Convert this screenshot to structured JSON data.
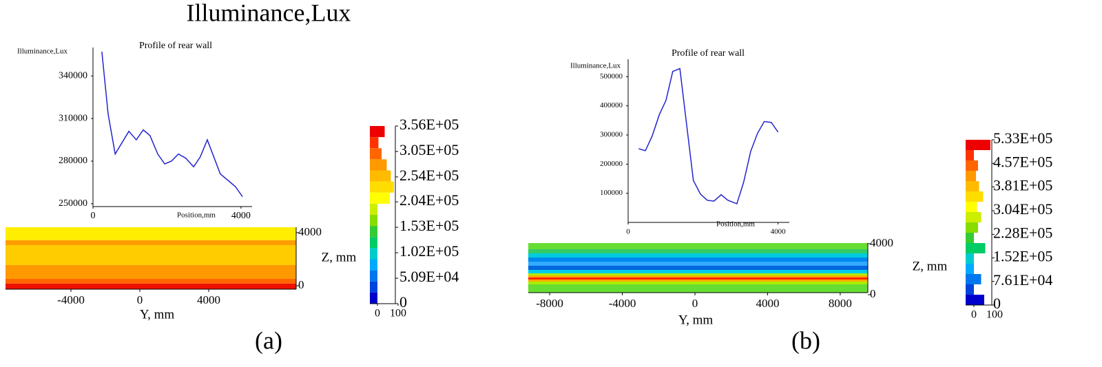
{
  "figure_title": "Illuminance,Lux",
  "panel_labels": [
    "(a)",
    "(b)"
  ],
  "chart_data": [
    {
      "type": "line",
      "title": "Profile of rear wall",
      "ylabel": "Illuminance,Lux",
      "xlabel": "Position,mm",
      "color": "#2222cc",
      "x": [
        240,
        410,
        600,
        970,
        1170,
        1360,
        1540,
        1750,
        1940,
        2120,
        2310,
        2510,
        2720,
        2900,
        3090,
        3440,
        3670,
        3850,
        4040
      ],
      "values": [
        357000,
        313000,
        285000,
        301000,
        295000,
        302000,
        298000,
        285000,
        278000,
        280000,
        285000,
        282000,
        276000,
        283000,
        295000,
        271000,
        266000,
        262000,
        255000
      ],
      "xlim": [
        0,
        4300
      ],
      "xticks": [
        0,
        4000
      ],
      "ylim": [
        248000,
        360000
      ],
      "yticks": [
        250000,
        280000,
        310000,
        340000
      ]
    },
    {
      "type": "heatmap",
      "xlabel": "Y, mm",
      "ylabel": "Z, mm",
      "xlim": [
        -7800,
        9080
      ],
      "xticks": [
        -4000,
        0,
        4000
      ],
      "ylim": [
        -260,
        4410
      ],
      "yticks": [
        0,
        4000
      ],
      "bands": [
        {
          "z": [
            3430,
            4410
          ],
          "color": "#ffee00"
        },
        {
          "z": [
            3060,
            3430
          ],
          "color": "#ff9d00"
        },
        {
          "z": [
            1560,
            3060
          ],
          "color": "#ffcc00"
        },
        {
          "z": [
            520,
            1560
          ],
          "color": "#ff9900"
        },
        {
          "z": [
            160,
            520
          ],
          "color": "#ff6600"
        },
        {
          "z": [
            -260,
            160
          ],
          "color": "#ee1100"
        }
      ]
    },
    {
      "type": "colorbar",
      "ylim": [
        0,
        356000
      ],
      "yticks": [
        {
          "value": 356000,
          "label": "3.56E+05"
        },
        {
          "value": 305000,
          "label": "3.05E+05"
        },
        {
          "value": 254000,
          "label": "2.54E+05"
        },
        {
          "value": 204000,
          "label": "2.04E+05"
        },
        {
          "value": 153000,
          "label": "1.53E+05"
        },
        {
          "value": 102000,
          "label": "1.02E+05"
        },
        {
          "value": 50900,
          "label": "5.09E+04"
        },
        0
      ],
      "levels": [
        "#ee0000",
        "#ff3300",
        "#ff6600",
        "#ff9900",
        "#ffbb00",
        "#ffdd00",
        "#ffff00",
        "#ccee00",
        "#88dd00",
        "#33cc33",
        "#00cc66",
        "#00cccc",
        "#00aaff",
        "#0077ee",
        "#0044dd",
        "#0000cc"
      ],
      "counts": [
        35,
        5,
        20,
        45,
        65,
        80,
        60,
        0,
        0,
        0,
        0,
        0,
        0,
        0,
        0,
        0
      ],
      "xlim": [
        0,
        100
      ],
      "xticks": [
        0,
        100
      ]
    },
    {
      "type": "line",
      "title": "Profile of rear wall",
      "ylabel": "Illuminance,Lux",
      "xlabel": "Position,mm",
      "color": "#2222cc",
      "x": [
        280,
        460,
        640,
        830,
        1010,
        1190,
        1380,
        1740,
        1930,
        2110,
        2290,
        2480,
        2660,
        2900,
        3080,
        3270,
        3450,
        3630,
        3820,
        4000
      ],
      "values": [
        253000,
        246000,
        296000,
        369000,
        419000,
        518000,
        528000,
        144000,
        97000,
        76000,
        73000,
        95000,
        76000,
        64000,
        137000,
        244000,
        305000,
        346000,
        343000,
        310000
      ],
      "xlim": [
        0,
        4300
      ],
      "xticks": [
        0,
        4000
      ],
      "ylim": [
        0,
        560000
      ],
      "yticks": [
        100000,
        200000,
        300000,
        400000,
        500000
      ]
    },
    {
      "type": "heatmap",
      "xlabel": "Y, mm",
      "ylabel": "Z, mm",
      "xlim": [
        -9180,
        9520
      ],
      "xticks": [
        -8000,
        -4000,
        0,
        4000,
        8000
      ],
      "ylim": [
        160,
        4050
      ],
      "yticks": [
        0,
        4000
      ],
      "bands": [
        {
          "z": [
            3564,
            4050
          ],
          "color": "#66dd33"
        },
        {
          "z": [
            3240,
            3564
          ],
          "color": "#33cc66"
        },
        {
          "z": [
            2916,
            3240
          ],
          "color": "#00ccdd"
        },
        {
          "z": [
            2592,
            2916
          ],
          "color": "#0088ee"
        },
        {
          "z": [
            2268,
            2592
          ],
          "color": "#33aaff"
        },
        {
          "z": [
            1944,
            2268
          ],
          "color": "#0066dd"
        },
        {
          "z": [
            1674,
            1944
          ],
          "color": "#00ccee"
        },
        {
          "z": [
            1512,
            1674
          ],
          "color": "#aaee00"
        },
        {
          "z": [
            1350,
            1512
          ],
          "color": "#ffaa00"
        },
        {
          "z": [
            1188,
            1350
          ],
          "color": "#ff2200"
        },
        {
          "z": [
            1026,
            1188
          ],
          "color": "#ffaa00"
        },
        {
          "z": [
            810,
            1026
          ],
          "color": "#aaee00"
        },
        {
          "z": [
            160,
            810
          ],
          "color": "#66dd33"
        }
      ]
    },
    {
      "type": "colorbar",
      "ylim": [
        0,
        533000
      ],
      "yticks": [
        {
          "value": 533000,
          "label": "5.33E+05"
        },
        {
          "value": 457000,
          "label": "4.57E+05"
        },
        {
          "value": 381000,
          "label": "3.81E+05"
        },
        {
          "value": 304000,
          "label": "3.04E+05"
        },
        {
          "value": 228000,
          "label": "2.28E+05"
        },
        {
          "value": 152000,
          "label": "1.52E+05"
        },
        {
          "value": 76100,
          "label": "7.61E+04"
        },
        0
      ],
      "levels": [
        "#ee0000",
        "#ff3300",
        "#ff6600",
        "#ff9900",
        "#ffbb00",
        "#ffdd00",
        "#ffff00",
        "#ccee00",
        "#88dd00",
        "#33cc33",
        "#00cc66",
        "#00cccc",
        "#00aaff",
        "#0077ee",
        "#0044dd",
        "#0000cc"
      ],
      "counts": [
        80,
        0,
        20,
        10,
        25,
        45,
        15,
        35,
        20,
        0,
        55,
        0,
        0,
        35,
        0,
        50
      ],
      "xlim": [
        0,
        100
      ],
      "xticks": [
        0,
        100
      ]
    }
  ]
}
